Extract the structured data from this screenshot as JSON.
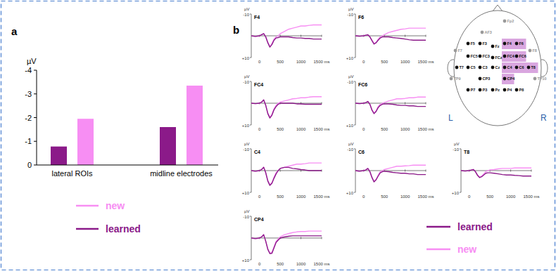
{
  "panel_labels": [
    "a",
    "b"
  ],
  "chart_data": [
    {
      "type": "bar",
      "y_label": "µV",
      "categories": [
        "lateral ROIs",
        "midline electrodes"
      ],
      "series": [
        {
          "name": "learned",
          "color": "#8b1a89",
          "values": [
            -0.78,
            -1.6
          ]
        },
        {
          "name": "new",
          "color": "#f78ef3",
          "values": [
            -1.95,
            -3.35
          ]
        }
      ],
      "ylim": [
        0,
        -4
      ],
      "yticks": [
        0,
        -1,
        -2,
        -3,
        -4
      ],
      "legend": "bottom"
    },
    {
      "type": "line",
      "title": "F4",
      "y_label": "µV",
      "x": [
        -200,
        -100,
        0,
        50,
        100,
        150,
        200,
        250,
        300,
        350,
        400,
        450,
        500,
        600,
        700,
        800,
        900,
        1000,
        1100,
        1200,
        1300,
        1400,
        1500
      ],
      "series": [
        {
          "name": "new",
          "color": "#f78ef3",
          "values": [
            0,
            0.3,
            0,
            -0.5,
            -1,
            0.5,
            3,
            5,
            3.5,
            1.5,
            0.5,
            0,
            -1,
            -2,
            -3,
            -3.5,
            -4,
            -4.5,
            -4.5,
            -4.8,
            -5,
            -5,
            -5
          ]
        },
        {
          "name": "learned",
          "color": "#8b1a89",
          "values": [
            0,
            0.3,
            0,
            -0.5,
            -1,
            0.5,
            3.2,
            5.2,
            4,
            2,
            1,
            0.8,
            0.5,
            0.5,
            0.5,
            0.8,
            1,
            1,
            1.2,
            1.2,
            1.5,
            1.5,
            1.5
          ]
        }
      ],
      "xlim": [
        -200,
        1500
      ],
      "xticks": [
        0,
        500,
        1000,
        {
          "value": 1500,
          "label": "1500 ms"
        }
      ],
      "ylim": [
        10,
        -10
      ],
      "yticks": [
        -10,
        {
          "value": 10,
          "label": "+10"
        }
      ]
    },
    {
      "type": "line",
      "title": "F6",
      "y_label": "µV",
      "x": [
        -200,
        -100,
        0,
        50,
        100,
        150,
        200,
        250,
        300,
        350,
        400,
        450,
        500,
        600,
        700,
        800,
        900,
        1000,
        1100,
        1200,
        1300,
        1400,
        1500
      ],
      "series": [
        {
          "name": "new",
          "color": "#f78ef3",
          "values": [
            0,
            0.2,
            0,
            -0.3,
            -0.5,
            0.5,
            2,
            3.5,
            3,
            1.5,
            0.5,
            0,
            -0.5,
            -1.5,
            -2,
            -2.5,
            -3,
            -3.2,
            -3.5,
            -3.5,
            -3.5,
            -3.5,
            -3.5
          ]
        },
        {
          "name": "learned",
          "color": "#8b1a89",
          "values": [
            0,
            0.2,
            0,
            -0.3,
            -0.5,
            0.5,
            2.2,
            3.8,
            3.2,
            2,
            1,
            0.5,
            0.5,
            0.5,
            0.8,
            1,
            1.2,
            1.5,
            1.8,
            2,
            2,
            2,
            2
          ]
        }
      ],
      "xlim": [
        -200,
        1500
      ],
      "xticks": [
        0,
        500,
        1000,
        {
          "value": 1500,
          "label": "1500 ms"
        }
      ],
      "ylim": [
        10,
        -10
      ],
      "yticks": [
        -10,
        {
          "value": 10,
          "label": "+10"
        }
      ]
    },
    {
      "type": "line",
      "title": "FC4",
      "y_label": "µV",
      "x": [
        -200,
        -100,
        0,
        50,
        100,
        150,
        200,
        250,
        300,
        350,
        400,
        450,
        500,
        600,
        700,
        800,
        900,
        1000,
        1100,
        1200,
        1300,
        1400,
        1500
      ],
      "series": [
        {
          "name": "new",
          "color": "#f78ef3",
          "values": [
            0,
            0.2,
            0,
            -0.5,
            -1.5,
            1,
            4.5,
            6.5,
            5,
            2.5,
            1,
            0,
            -0.5,
            -1,
            -1.5,
            -2,
            -2.2,
            -2.5,
            -2.5,
            -2.8,
            -3,
            -3,
            -3
          ]
        },
        {
          "name": "learned",
          "color": "#8b1a89",
          "values": [
            0,
            0.2,
            0,
            -0.5,
            -1.5,
            1,
            4.8,
            6.8,
            5.5,
            3,
            1.5,
            0.5,
            0,
            0,
            0,
            0,
            0.3,
            0.3,
            0.5,
            0.5,
            0.5,
            0.5,
            0.5
          ]
        }
      ],
      "xlim": [
        -200,
        1500
      ],
      "xticks": [
        0,
        500,
        1000,
        {
          "value": 1500,
          "label": "1500 ms"
        }
      ],
      "ylim": [
        10,
        -10
      ],
      "yticks": [
        -10,
        {
          "value": 10,
          "label": "+10"
        }
      ]
    },
    {
      "type": "line",
      "title": "FC6",
      "y_label": "µV",
      "x": [
        -200,
        -100,
        0,
        50,
        100,
        150,
        200,
        250,
        300,
        350,
        400,
        450,
        500,
        600,
        700,
        800,
        900,
        1000,
        1100,
        1200,
        1300,
        1400,
        1500
      ],
      "series": [
        {
          "name": "new",
          "color": "#f78ef3",
          "values": [
            0,
            0.2,
            0,
            -0.3,
            -0.8,
            0.5,
            3,
            4.5,
            3.5,
            1.5,
            0.5,
            0,
            -0.3,
            -1,
            -1.5,
            -2,
            -2,
            -2.2,
            -2.5,
            -2.5,
            -2.8,
            -2.8,
            -2.8
          ]
        },
        {
          "name": "learned",
          "color": "#8b1a89",
          "values": [
            0,
            0.2,
            0,
            -0.3,
            -0.8,
            0.5,
            3.2,
            4.8,
            3.8,
            2,
            1,
            0.5,
            0.3,
            0.3,
            0.5,
            0.8,
            1,
            1,
            1.2,
            1.2,
            1.5,
            1.5,
            1.5
          ]
        }
      ],
      "xlim": [
        -200,
        1500
      ],
      "xticks": [
        0,
        500,
        1000,
        {
          "value": 1500,
          "label": "1500 ms"
        }
      ],
      "ylim": [
        10,
        -10
      ],
      "yticks": [
        -10,
        {
          "value": 10,
          "label": "+10"
        }
      ]
    },
    {
      "type": "line",
      "title": "C4",
      "y_label": "µV",
      "x": [
        -200,
        -100,
        0,
        50,
        100,
        150,
        200,
        250,
        300,
        350,
        400,
        450,
        500,
        600,
        700,
        800,
        900,
        1000,
        1100,
        1200,
        1300,
        1400,
        1500
      ],
      "series": [
        {
          "name": "new",
          "color": "#f78ef3",
          "values": [
            0,
            0.3,
            0,
            -0.5,
            -1.5,
            1,
            4.5,
            6.5,
            5.5,
            3,
            1,
            0,
            -1,
            -1.5,
            -2,
            -2.5,
            -3,
            -3,
            -3.2,
            -3.5,
            -3.5,
            -3.5,
            -3.5
          ]
        },
        {
          "name": "learned",
          "color": "#8b1a89",
          "values": [
            0,
            0.3,
            0,
            -0.5,
            -1.5,
            1,
            4.8,
            6.8,
            5.8,
            3.5,
            1.5,
            0,
            -1,
            -1.5,
            -1.5,
            -1,
            -0.8,
            -0.5,
            -0.3,
            0,
            0,
            0,
            0
          ]
        }
      ],
      "xlim": [
        -200,
        1500
      ],
      "xticks": [
        0,
        500,
        1000,
        {
          "value": 1500,
          "label": "1500 ms"
        }
      ],
      "ylim": [
        10,
        -10
      ],
      "yticks": [
        -10,
        {
          "value": 10,
          "label": "+10"
        }
      ]
    },
    {
      "type": "line",
      "title": "C6",
      "y_label": "µV",
      "x": [
        -200,
        -100,
        0,
        50,
        100,
        150,
        200,
        250,
        300,
        350,
        400,
        450,
        500,
        600,
        700,
        800,
        900,
        1000,
        1100,
        1200,
        1300,
        1400,
        1500
      ],
      "series": [
        {
          "name": "new",
          "color": "#f78ef3",
          "values": [
            0,
            0.3,
            0,
            -0.3,
            -1,
            0.5,
            3,
            5,
            4,
            2,
            0.5,
            0,
            -0.5,
            -1,
            -1.5,
            -2,
            -2,
            -2.2,
            -2.3,
            -2.5,
            -2.5,
            -2.5,
            -2.5
          ]
        },
        {
          "name": "learned",
          "color": "#8b1a89",
          "values": [
            0,
            0.3,
            0,
            -0.3,
            -1,
            0.5,
            3.2,
            5.2,
            4.2,
            2.5,
            1,
            0.5,
            0.3,
            0.5,
            0.8,
            1,
            1.2,
            1.2,
            1.5,
            1.5,
            1.8,
            1.8,
            1.8
          ]
        }
      ],
      "xlim": [
        -200,
        1500
      ],
      "xticks": [
        0,
        500,
        1000,
        {
          "value": 1500,
          "label": "1500 ms"
        }
      ],
      "ylim": [
        10,
        -10
      ],
      "yticks": [
        -10,
        {
          "value": 10,
          "label": "+10"
        }
      ]
    },
    {
      "type": "line",
      "title": "T8",
      "y_label": "µV",
      "x": [
        -200,
        -100,
        0,
        50,
        100,
        150,
        200,
        250,
        300,
        350,
        400,
        450,
        500,
        600,
        700,
        800,
        900,
        1000,
        1100,
        1200,
        1300,
        1400,
        1500
      ],
      "series": [
        {
          "name": "new",
          "color": "#f78ef3",
          "values": [
            0,
            0.2,
            0,
            -0.3,
            -0.5,
            0.5,
            2,
            3,
            2.5,
            1.5,
            0.5,
            0,
            -0.3,
            -0.5,
            -0.8,
            -1,
            -1,
            -1,
            -1.2,
            -1.2,
            -1.2,
            -1.2,
            -1.2
          ]
        },
        {
          "name": "learned",
          "color": "#8b1a89",
          "values": [
            0,
            0.2,
            0,
            -0.3,
            -0.5,
            0.5,
            2.2,
            3.2,
            2.8,
            2,
            1.2,
            1,
            1,
            1.2,
            1.5,
            1.8,
            2,
            2,
            2.2,
            2.3,
            2.5,
            2.5,
            2.5
          ]
        }
      ],
      "xlim": [
        -200,
        1500
      ],
      "xticks": [
        0,
        500,
        1000,
        {
          "value": 1500,
          "label": "1500 ms"
        }
      ],
      "ylim": [
        10,
        -10
      ],
      "yticks": [
        -10,
        {
          "value": 10,
          "label": "+10"
        }
      ]
    },
    {
      "type": "line",
      "title": "CP4",
      "y_label": "µV",
      "x": [
        -200,
        -100,
        0,
        50,
        100,
        150,
        200,
        250,
        300,
        350,
        400,
        450,
        500,
        600,
        700,
        800,
        900,
        1000,
        1100,
        1200,
        1300,
        1400,
        1500
      ],
      "series": [
        {
          "name": "new",
          "color": "#f78ef3",
          "values": [
            0,
            0.3,
            0,
            -0.5,
            -1.5,
            1.5,
            5,
            7,
            6.5,
            4,
            1.5,
            0.5,
            -0.5,
            -1.5,
            -2,
            -2.5,
            -2.8,
            -3,
            -3,
            -3.2,
            -3.2,
            -3.2,
            -3.2
          ]
        },
        {
          "name": "learned",
          "color": "#8b1a89",
          "values": [
            0,
            0.3,
            0,
            -0.5,
            -1.5,
            1.5,
            5.2,
            7.2,
            7,
            4.5,
            2,
            1,
            0,
            -0.5,
            -0.8,
            -1,
            -1,
            -1,
            -1,
            -1,
            -1,
            -1,
            -1
          ]
        }
      ],
      "xlim": [
        -200,
        1500
      ],
      "xticks": [
        0,
        500,
        1000,
        {
          "value": 1500,
          "label": "1500 ms"
        }
      ],
      "ylim": [
        10,
        -10
      ],
      "yticks": [
        -10,
        {
          "value": 10,
          "label": "+10"
        }
      ]
    }
  ],
  "head_map": {
    "left": "L",
    "right": "R",
    "electrodes": [
      {
        "label": "Fp2",
        "recorded": false,
        "selected": false
      },
      {
        "label": "AF3",
        "recorded": false,
        "selected": false
      },
      {
        "label": "F7",
        "recorded": false,
        "selected": false
      },
      {
        "label": "F5",
        "recorded": true,
        "selected": false
      },
      {
        "label": "F3",
        "recorded": true,
        "selected": false
      },
      {
        "label": "Fz",
        "recorded": true,
        "selected": false
      },
      {
        "label": "F4",
        "recorded": true,
        "selected": true
      },
      {
        "label": "F6",
        "recorded": true,
        "selected": true
      },
      {
        "label": "F8",
        "recorded": false,
        "selected": false
      },
      {
        "label": "FC5",
        "recorded": true,
        "selected": false
      },
      {
        "label": "FC3",
        "recorded": true,
        "selected": false
      },
      {
        "label": "FCz",
        "recorded": true,
        "selected": false
      },
      {
        "label": "FC4",
        "recorded": true,
        "selected": true
      },
      {
        "label": "FC6",
        "recorded": true,
        "selected": true
      },
      {
        "label": "T7",
        "recorded": true,
        "selected": false
      },
      {
        "label": "C5",
        "recorded": true,
        "selected": false
      },
      {
        "label": "C3",
        "recorded": true,
        "selected": false
      },
      {
        "label": "Cz",
        "recorded": true,
        "selected": false
      },
      {
        "label": "C4",
        "recorded": true,
        "selected": true
      },
      {
        "label": "C6",
        "recorded": true,
        "selected": true
      },
      {
        "label": "T8",
        "recorded": true,
        "selected": true
      },
      {
        "label": "TP9",
        "recorded": false,
        "selected": false
      },
      {
        "label": "CP3",
        "recorded": true,
        "selected": false
      },
      {
        "label": "CP4",
        "recorded": true,
        "selected": true
      },
      {
        "label": "TP10",
        "recorded": false,
        "selected": false
      },
      {
        "label": "P7",
        "recorded": true,
        "selected": false
      },
      {
        "label": "P3",
        "recorded": true,
        "selected": false
      },
      {
        "label": "Pz",
        "recorded": true,
        "selected": false
      },
      {
        "label": "P4",
        "recorded": true,
        "selected": false
      },
      {
        "label": "P8",
        "recorded": true,
        "selected": false
      }
    ]
  }
}
